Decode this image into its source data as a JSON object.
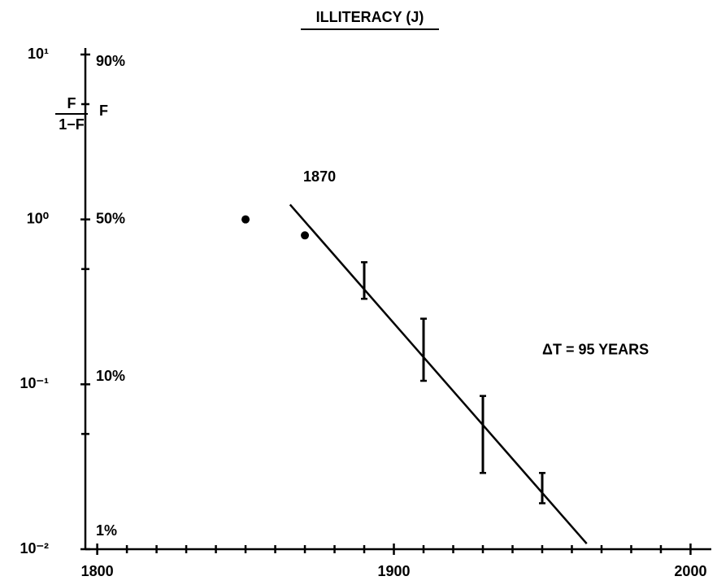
{
  "chart_data": {
    "type": "scatter",
    "title": "ILLITERACY (J)",
    "y_label_numerator": "F",
    "y_label_denominator": "1−F",
    "y2_label": "F",
    "log_y": true,
    "xlim": [
      1796,
      2007
    ],
    "xticks": [
      1800,
      1900,
      2000
    ],
    "minor_xticks": [
      1810,
      1820,
      1830,
      1840,
      1850,
      1860,
      1870,
      1880,
      1890,
      1910,
      1920,
      1930,
      1940,
      1950,
      1960,
      1970,
      1980,
      1990
    ],
    "ylim": [
      0.01,
      10
    ],
    "yticks": [
      {
        "value": 10,
        "label": "10¹"
      },
      {
        "value": 1,
        "label": "10⁰"
      },
      {
        "value": 0.1,
        "label": "10⁻¹"
      },
      {
        "value": 0.01,
        "label": "10⁻²"
      }
    ],
    "minor_yticks": [
      5,
      0.5,
      0.05
    ],
    "fticks": [
      {
        "value": 9,
        "label": "90%"
      },
      {
        "value": 1,
        "label": "50%"
      },
      {
        "value": 0.111,
        "label": "10%"
      },
      {
        "value": 0.0101,
        "label": "1%"
      }
    ],
    "color": "#000000",
    "series": [
      {
        "x": [
          1850,
          1870
        ],
        "values": [
          1.0,
          0.8
        ]
      },
      {
        "x": [
          1890,
          1910,
          1930,
          1950
        ],
        "values": [
          0.4,
          0.15,
          0.05,
          0.02
        ],
        "low": [
          0.33,
          0.105,
          0.029,
          0.019
        ],
        "high": [
          0.55,
          0.25,
          0.085,
          0.029
        ]
      },
      {
        "x": [
          1865,
          1965
        ],
        "values": [
          1.23,
          0.0108
        ]
      }
    ],
    "annotations": [
      {
        "text": "1870",
        "x": 1870,
        "y": 1.6
      },
      {
        "text": "ΔT = 95 YEARS",
        "x": 1910,
        "y": 0.16
      }
    ]
  }
}
